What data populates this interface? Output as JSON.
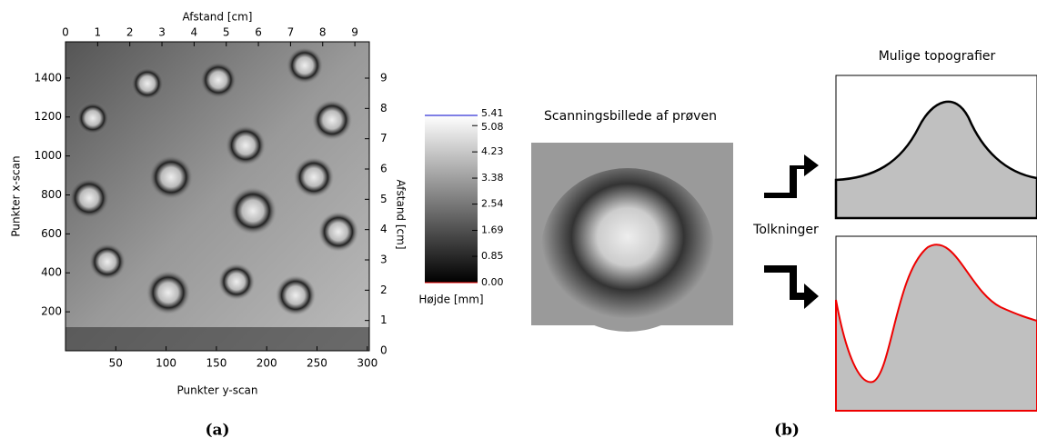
{
  "panel_a": {
    "top_axis": {
      "label": "Afstand [cm]",
      "xlim": [
        0,
        9.45
      ],
      "ticks": [
        0,
        1,
        2,
        3,
        4,
        5,
        6,
        7,
        8,
        9
      ]
    },
    "bottom_axis": {
      "label": "Punkter y-scan",
      "xlim": [
        0,
        302
      ],
      "ticks": [
        50,
        100,
        150,
        200,
        250,
        300
      ]
    },
    "left_axis": {
      "label": "Punkter x-scan",
      "ylim": [
        0,
        1586
      ],
      "ticks": [
        200,
        400,
        600,
        800,
        1000,
        1200,
        1400
      ]
    },
    "right_axis": {
      "label": "Afstand [cm]",
      "ylim": [
        0,
        10.2
      ],
      "ticks": [
        0,
        1,
        2,
        3,
        4,
        5,
        6,
        7,
        8,
        9
      ]
    },
    "colorbar": {
      "label": "Højde [mm]",
      "ylim": [
        0,
        5.41
      ],
      "ticks": [
        {
          "value": 0,
          "label": "0.00"
        },
        {
          "value": 0.85,
          "label": "0.85"
        },
        {
          "value": 1.69,
          "label": "1.69"
        },
        {
          "value": 2.54,
          "label": "2.54"
        },
        {
          "value": 3.38,
          "label": "3.38"
        },
        {
          "value": 4.23,
          "label": "4.23"
        },
        {
          "value": 5.08,
          "label": "5.08"
        },
        {
          "value": 5.41,
          "label": "5.41"
        }
      ]
    },
    "caption": "(a)"
  },
  "panel_b": {
    "scan_title": "Scanningsbillede af prøven",
    "interpretations_label": "Tolkninger",
    "topographies_title": "Mulige topografier",
    "caption": "(b)"
  }
}
